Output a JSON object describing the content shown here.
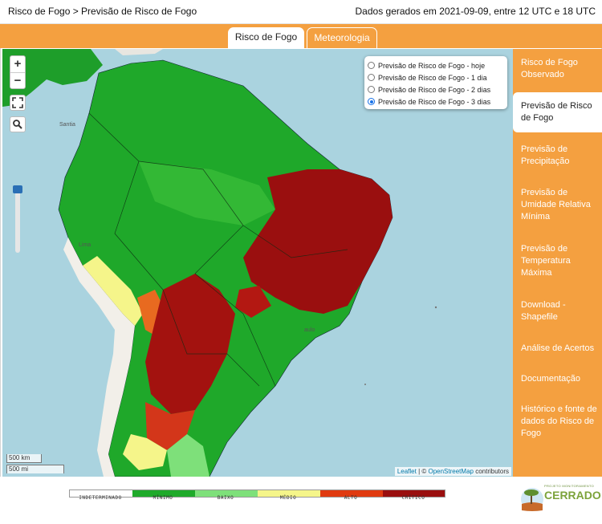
{
  "header": {
    "breadcrumb": "Risco de Fogo > Previsão de Risco de Fogo",
    "generated_info": "Dados gerados em 2021-09-09, entre 12 UTC e 18 UTC"
  },
  "tabs": [
    {
      "label": "Risco de Fogo",
      "active": true
    },
    {
      "label": "Meteorologia",
      "active": false
    }
  ],
  "map": {
    "zoom_in": "+",
    "zoom_out": "−",
    "layers": [
      {
        "label": "Previsão de Risco de Fogo - hoje",
        "checked": false
      },
      {
        "label": "Previsão de Risco de Fogo - 1 dia",
        "checked": false
      },
      {
        "label": "Previsão de Risco de Fogo - 2 dias",
        "checked": false
      },
      {
        "label": "Previsão de Risco de Fogo - 3 dias",
        "checked": true
      }
    ],
    "scale_km": "500 km",
    "scale_mi": "500 mi",
    "attribution": {
      "leaflet": "Leaflet",
      "separator": " | © ",
      "osm": "OpenStreetMap",
      "contributors": " contributors"
    },
    "place_labels": [
      "Santia",
      "Lima",
      "aulo"
    ],
    "colors": {
      "ocean": "#aad3df",
      "land": "#f2efe9"
    }
  },
  "sidebar": {
    "items": [
      {
        "label": "Risco de Fogo Observado",
        "active": false
      },
      {
        "label": "Previsão de Risco de Fogo",
        "active": true
      },
      {
        "label": "Previsão de Precipitação",
        "active": false
      },
      {
        "label": "Previsão de Umidade Relativa Mínima",
        "active": false
      },
      {
        "label": "Previsão de Temperatura Máxima",
        "active": false
      },
      {
        "label": "Download - Shapefile",
        "active": false
      },
      {
        "label": "Análise de Acertos",
        "active": false
      },
      {
        "label": "Documentação",
        "active": false
      },
      {
        "label": "Histórico e fonte de dados do Risco de Fogo",
        "active": false
      }
    ],
    "color": "#f4a040"
  },
  "legend": {
    "categories": [
      {
        "label": "INDETERMINADO",
        "color": "#ffffff"
      },
      {
        "label": "MÍNIMO",
        "color": "#1faa2a"
      },
      {
        "label": "BAIXO",
        "color": "#7ee07a"
      },
      {
        "label": "MÉDIO",
        "color": "#f5f58a"
      },
      {
        "label": "ALTO",
        "color": "#e03a10"
      },
      {
        "label": "CRÍTICO",
        "color": "#9a0f0f"
      }
    ]
  },
  "logo": {
    "small_text": "PROJETO MONITORAMENTO",
    "name": "CERRADO"
  }
}
